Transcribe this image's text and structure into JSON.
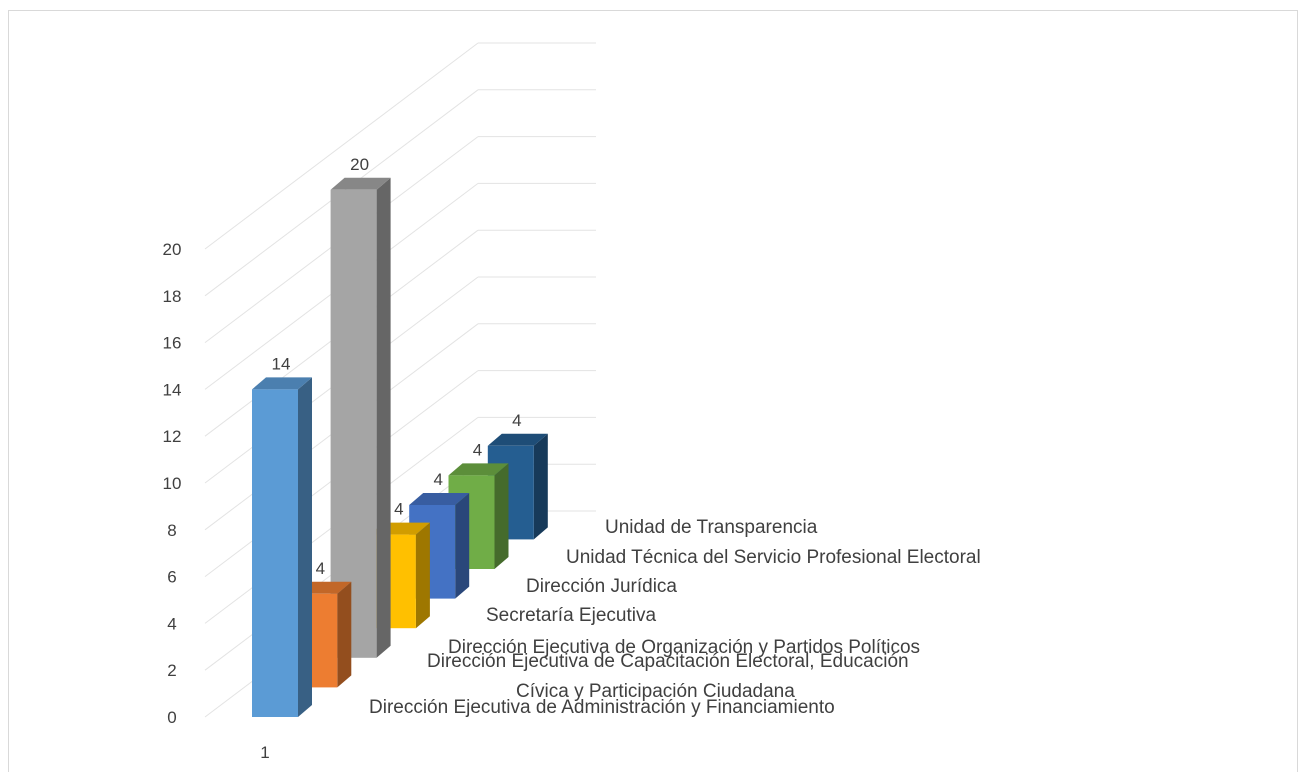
{
  "chart_data": {
    "type": "bar",
    "style": "3d-clustered-depth",
    "x_tick_label": "1",
    "y_ticks": [
      "0",
      "2",
      "4",
      "6",
      "8",
      "10",
      "12",
      "14",
      "16",
      "18",
      "20"
    ],
    "ylim": [
      0,
      20
    ],
    "grid": true,
    "series": [
      {
        "name": "Dirección Ejecutiva de Administración y Financiamiento",
        "value": 14,
        "value_label": "14",
        "color": "#5b9bd5"
      },
      {
        "name": "Dirección Ejecutiva de Capacitación Electoral, Educación Cívica y Participación Ciudadana",
        "name_lines": [
          "Dirección Ejecutiva de Capacitación Electoral, Educación",
          "Cívica y Participación Ciudadana"
        ],
        "value": 4,
        "value_label": "4",
        "color": "#ed7d31"
      },
      {
        "name": "Dirección Ejecutiva de Organización y Partidos Políticos",
        "value": 20,
        "value_label": "20",
        "color": "#a5a5a5"
      },
      {
        "name": "Secretaría Ejecutiva",
        "value": 4,
        "value_label": "4",
        "color": "#ffc000"
      },
      {
        "name": "Dirección Jurídica",
        "value": 4,
        "value_label": "4",
        "color": "#4472c4"
      },
      {
        "name": "Unidad Técnica del Servicio Profesional Electoral",
        "value": 4,
        "value_label": "4",
        "color": "#70ad47"
      },
      {
        "name": "Unidad de Transparencia",
        "value": 4,
        "value_label": "4",
        "color": "#255e91"
      }
    ]
  }
}
